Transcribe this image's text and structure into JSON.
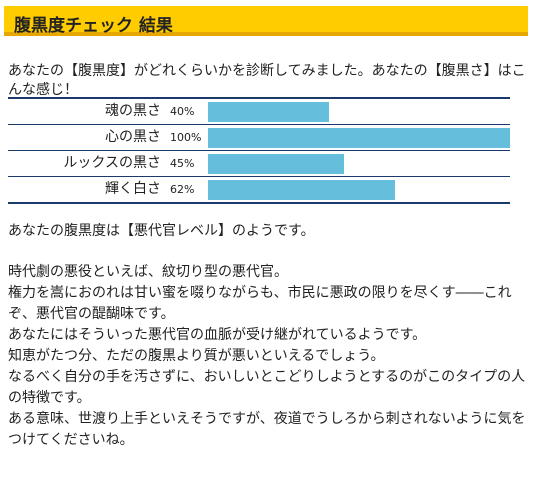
{
  "title": "腹黒度チェック 結果",
  "intro": "あなたの【腹黒度】がどれくらいかを診断してみました。あなたの【腹黒さ】はこんな感じ！",
  "results": [
    {
      "label": "魂の黒さ",
      "percent_label": "40%",
      "value": 40
    },
    {
      "label": "心の黒さ",
      "percent_label": "100%",
      "value": 100
    },
    {
      "label": "ルックスの黒さ",
      "percent_label": "45%",
      "value": 45
    },
    {
      "label": "輝く白さ",
      "percent_label": "62%",
      "value": 62
    }
  ],
  "bar_color": "#66bedd",
  "level_text": "あなたの腹黒度は【悪代官レベル】のようです。",
  "description": [
    "時代劇の悪役といえば、紋切り型の悪代官。",
    "権力を嵩におのれは甘い蜜を啜りながらも、市民に悪政の限りを尽くす――これぞ、悪代官の醍醐味です。",
    "あなたにはそういった悪代官の血脈が受け継がれているようです。",
    "知恵がたつ分、ただの腹黒より質が悪いといえるでしょう。",
    "なるべく自分の手を汚さずに、おいしいとこどりしようとするのがこのタイプの人の特徴です。",
    "ある意味、世渡り上手といえそうですが、夜道でうしろから刺されないように気をつけてくださいね。"
  ]
}
